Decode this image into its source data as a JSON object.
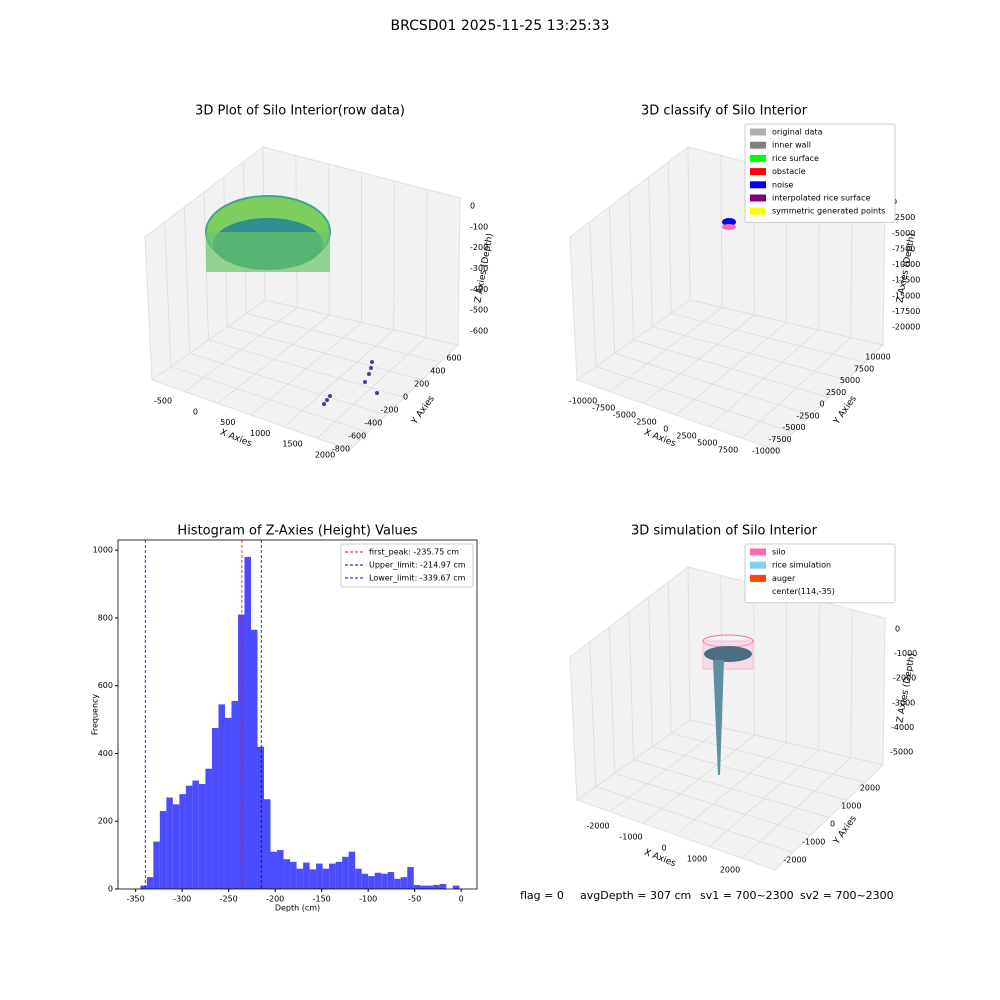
{
  "title": "BRCSD01 2025-11-25 13:25:33",
  "footer": [
    "flag = 0",
    "avgDepth = 307 cm",
    "sv1 = 700~2300",
    "sv2 = 700~2300"
  ],
  "chart_data": [
    {
      "type": "scatter3d",
      "title": "3D Plot of Silo Interior(row data)",
      "x_label": "X Axies",
      "y_label": "Y Axies",
      "z_label": "Z Axies (Depth)",
      "xticks": [
        -500,
        0,
        500,
        1000,
        1500,
        2000
      ],
      "yticks": [
        -800,
        -600,
        -400,
        -200,
        0,
        200,
        400,
        600
      ],
      "zticks": [
        -600,
        -500,
        -400,
        -300,
        -200,
        -100,
        0
      ]
    },
    {
      "type": "scatter3d",
      "title": "3D classify of Silo Interior",
      "x_label": "X Axies",
      "y_label": "Y Axies",
      "z_label": "Z Axies (Depth)",
      "xticks": [
        -10000,
        -7500,
        -5000,
        -2500,
        0,
        2500,
        5000,
        7500
      ],
      "yticks": [
        -10000,
        -7500,
        -5000,
        -2500,
        0,
        2500,
        5000,
        7500,
        10000
      ],
      "zticks": [
        -20000,
        -17500,
        -15000,
        -12500,
        -10000,
        -7500,
        -5000,
        -2500,
        0
      ],
      "legend": [
        {
          "name": "original data",
          "color": "#b0b0b0"
        },
        {
          "name": "inner wall",
          "color": "#808080"
        },
        {
          "name": "rice surface",
          "color": "#00ff00"
        },
        {
          "name": "obstacle",
          "color": "#ff0000"
        },
        {
          "name": "noise",
          "color": "#0000ff"
        },
        {
          "name": "interpolated rice surface",
          "color": "#800080"
        },
        {
          "name": "symmetric generated points",
          "color": "#ffff00"
        }
      ]
    },
    {
      "type": "histogram",
      "title": "Histogram of Z-Axies (Height) Values",
      "x_label": "Depth (cm)",
      "y_label": "Frequency",
      "color": "#4c4cff",
      "bins": [
        -345,
        -338,
        -331,
        -324,
        -317,
        -310,
        -303,
        -296,
        -289,
        -282,
        -275,
        -268,
        -261,
        -254,
        -247,
        -240,
        -233,
        -226,
        -219,
        -212,
        -205,
        -198,
        -191,
        -184,
        -177,
        -170,
        -163,
        -156,
        -149,
        -142,
        -135,
        -128,
        -121,
        -114,
        -107,
        -100,
        -93,
        -86,
        -79,
        -72,
        -65,
        -58,
        -51,
        -44,
        -37,
        -30,
        -23,
        -16,
        -9,
        -2,
        5
      ],
      "values": [
        10,
        35,
        140,
        230,
        270,
        250,
        280,
        305,
        320,
        310,
        355,
        475,
        545,
        505,
        555,
        810,
        980,
        765,
        420,
        265,
        110,
        115,
        88,
        80,
        60,
        78,
        58,
        75,
        60,
        75,
        80,
        95,
        110,
        60,
        45,
        38,
        48,
        45,
        50,
        30,
        35,
        65,
        12,
        10,
        10,
        12,
        15,
        0,
        10,
        0
      ],
      "lines": [
        {
          "name": "first_peak: -235.75 cm",
          "value": -235.75,
          "color": "#ff0000"
        },
        {
          "name": "Upper_limit: -214.97 cm",
          "value": -214.97,
          "color": "#00008b"
        },
        {
          "name": "Lower_limit: -339.67 cm",
          "value": -339.67,
          "color": "#0000ff"
        }
      ],
      "xlim": [
        -369,
        17
      ],
      "ylim": [
        0,
        1030
      ],
      "xticks": [
        -350,
        -300,
        -250,
        -200,
        -150,
        -100,
        -50,
        0
      ],
      "yticks": [
        0,
        200,
        400,
        600,
        800,
        1000
      ],
      "legend_position": "upper right"
    },
    {
      "type": "surface3d",
      "title": "3D simulation of Silo Interior",
      "x_label": "X Axies",
      "y_label": "Y Axies",
      "z_label": "Z Axies (Depth)",
      "xticks": [
        -2000,
        -1000,
        0,
        1000,
        2000
      ],
      "yticks": [
        -2000,
        -1000,
        0,
        1000,
        2000
      ],
      "zticks": [
        -5000,
        -4000,
        -3000,
        -2000,
        -1000,
        0
      ],
      "legend": [
        {
          "name": "silo",
          "color": "#ff69b4"
        },
        {
          "name": "rice simulation",
          "color": "#87ceeb"
        },
        {
          "name": "auger",
          "color": "#ff4500"
        },
        {
          "name": "center(114,-35)"
        }
      ]
    }
  ]
}
